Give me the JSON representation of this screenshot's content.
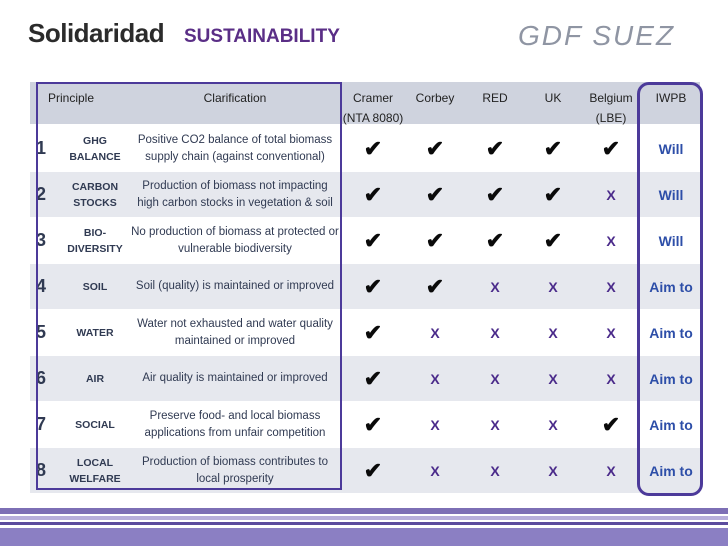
{
  "header": {
    "logo_left": "Solidaridad",
    "subtitle": "SUSTAINABILITY",
    "logo_right": "GDF SUEZ"
  },
  "columns": {
    "principle": "Principle",
    "clarification": "Clarification",
    "cramer_line1": "Cramer",
    "cramer_line2": "(NTA 8080)",
    "corbey": "Corbey",
    "red": "RED",
    "uk": "UK",
    "belgium_line1": "Belgium",
    "belgium_line2": "(LBE)",
    "iwpb": "IWPB"
  },
  "symbols": {
    "check": "✔",
    "cross": "X"
  },
  "rows": [
    {
      "num": "1",
      "principle": "GHG BALANCE",
      "clarification": "Positive CO2 balance of total biomass supply chain (against conventional)",
      "marks": [
        "check",
        "check",
        "check",
        "check",
        "check"
      ],
      "iwpb": "Will"
    },
    {
      "num": "2",
      "principle": "CARBON STOCKS",
      "clarification": "Production of biomass not impacting high carbon stocks in vegetation & soil",
      "marks": [
        "check",
        "check",
        "check",
        "check",
        "cross"
      ],
      "iwpb": "Will"
    },
    {
      "num": "3",
      "principle": "BIO-DIVERSITY",
      "clarification": "No production of biomass at protected or vulnerable biodiversity",
      "marks": [
        "check",
        "check",
        "check",
        "check",
        "cross"
      ],
      "iwpb": "Will"
    },
    {
      "num": "4",
      "principle": "SOIL",
      "clarification": "Soil (quality) is maintained or improved",
      "marks": [
        "check",
        "check",
        "cross",
        "cross",
        "cross"
      ],
      "iwpb": "Aim to"
    },
    {
      "num": "5",
      "principle": "WATER",
      "clarification": "Water not exhausted and water quality maintained or improved",
      "marks": [
        "check",
        "cross",
        "cross",
        "cross",
        "cross"
      ],
      "iwpb": "Aim to"
    },
    {
      "num": "6",
      "principle": "AIR",
      "clarification": "Air quality is maintained or improved",
      "marks": [
        "check",
        "cross",
        "cross",
        "cross",
        "cross"
      ],
      "iwpb": "Aim to"
    },
    {
      "num": "7",
      "principle": "SOCIAL",
      "clarification": "Preserve food- and local biomass applications from unfair competition",
      "marks": [
        "check",
        "cross",
        "cross",
        "cross",
        "check"
      ],
      "iwpb": "Aim to"
    },
    {
      "num": "8",
      "principle": "LOCAL WELFARE",
      "clarification": "Production of biomass contributes to local prosperity",
      "marks": [
        "check",
        "cross",
        "cross",
        "cross",
        "cross"
      ],
      "iwpb": "Aim to"
    }
  ]
}
